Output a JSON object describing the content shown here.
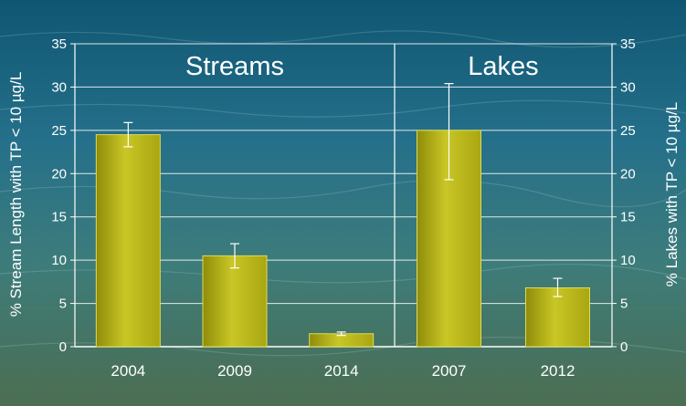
{
  "chart_data": {
    "type": "bar",
    "ylim": [
      0,
      35
    ],
    "yticks": [
      0,
      5,
      10,
      15,
      20,
      25,
      30,
      35
    ],
    "y_tick_labels": [
      "0",
      "5",
      "10",
      "15",
      "20",
      "25",
      "30",
      "35"
    ],
    "ylabel_left": "% Stream Length with TP < 10 µg/L",
    "ylabel_right": "% Lakes with TP < 10 µg/L",
    "grid": true,
    "colors": {
      "bar": "#b5b218",
      "bar_dark": "#7d7a05",
      "bar_light": "#dedb55",
      "grid": "#ffffff",
      "text": "#ffffff"
    },
    "panels": [
      {
        "title": "Streams",
        "categories": [
          "2004",
          "2009",
          "2014"
        ],
        "values": [
          24.5,
          10.5,
          1.5
        ],
        "error_low": [
          23.1,
          9.1,
          1.3
        ],
        "error_high": [
          25.9,
          11.9,
          1.7
        ]
      },
      {
        "title": "Lakes",
        "categories": [
          "2007",
          "2012"
        ],
        "values": [
          25.0,
          6.8
        ],
        "error_low": [
          19.3,
          5.8
        ],
        "error_high": [
          30.4,
          7.9
        ]
      }
    ]
  }
}
